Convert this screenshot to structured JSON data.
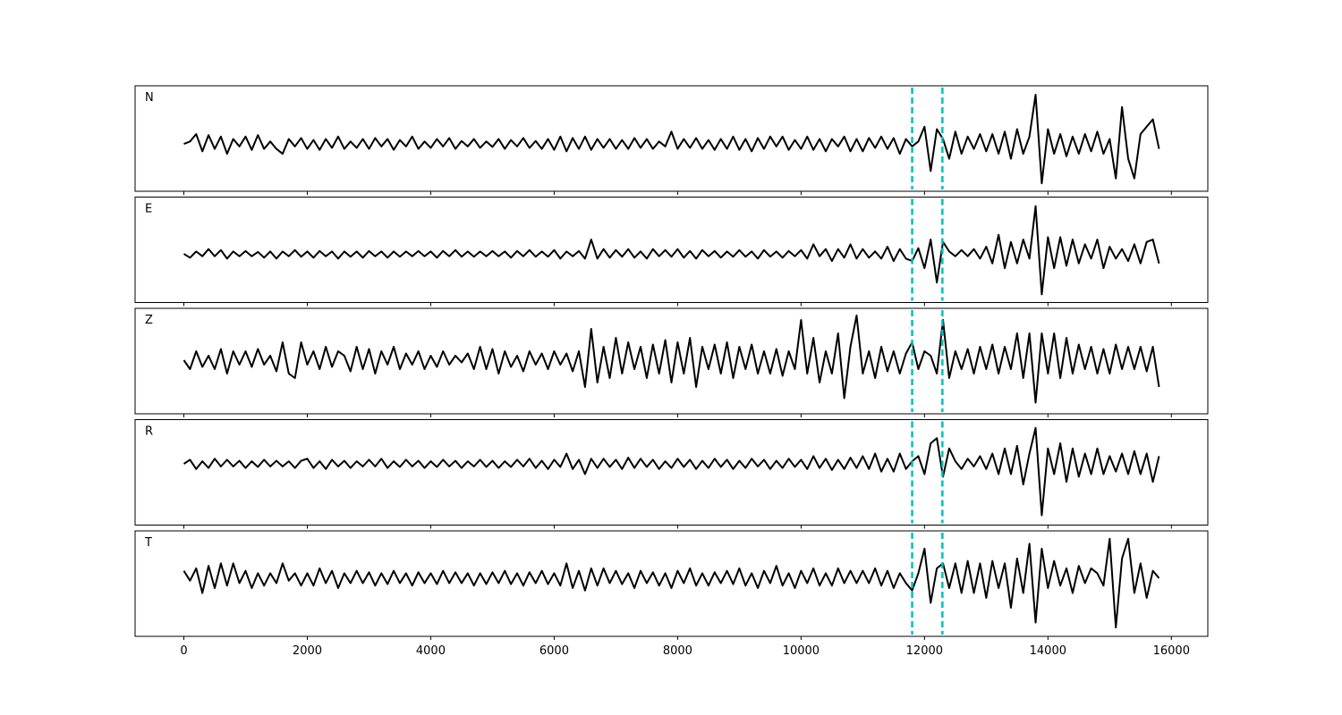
{
  "chart_data": {
    "type": "line",
    "x": [
      0,
      100,
      200,
      300,
      400,
      500,
      600,
      700,
      800,
      900,
      1000,
      1100,
      1200,
      1300,
      1400,
      1500,
      1600,
      1700,
      1800,
      1900,
      2000,
      2100,
      2200,
      2300,
      2400,
      2500,
      2600,
      2700,
      2800,
      2900,
      3000,
      3100,
      3200,
      3300,
      3400,
      3500,
      3600,
      3700,
      3800,
      3900,
      4000,
      4100,
      4200,
      4300,
      4400,
      4500,
      4600,
      4700,
      4800,
      4900,
      5000,
      5100,
      5200,
      5300,
      5400,
      5500,
      5600,
      5700,
      5800,
      5900,
      6000,
      6100,
      6200,
      6300,
      6400,
      6500,
      6600,
      6700,
      6800,
      6900,
      7000,
      7100,
      7200,
      7300,
      7400,
      7500,
      7600,
      7700,
      7800,
      7900,
      8000,
      8100,
      8200,
      8300,
      8400,
      8500,
      8600,
      8700,
      8800,
      8900,
      9000,
      9100,
      9200,
      9300,
      9400,
      9500,
      9600,
      9700,
      9800,
      9900,
      10000,
      10100,
      10200,
      10300,
      10400,
      10500,
      10600,
      10700,
      10800,
      10900,
      11000,
      11100,
      11200,
      11300,
      11400,
      11500,
      11600,
      11700,
      11800,
      11900,
      12000,
      12100,
      12200,
      12300,
      12400,
      12500,
      12600,
      12700,
      12800,
      12900,
      13000,
      13100,
      13200,
      13300,
      13400,
      13500,
      13600,
      13700,
      13800,
      13900,
      14000,
      14100,
      14200,
      14300,
      14400,
      14500,
      14600,
      14700,
      14800,
      14900,
      15000,
      15100,
      15200,
      15300,
      15400,
      15500,
      15600,
      15700,
      15800
    ],
    "xlim": [
      -790,
      16590
    ],
    "xticks": [
      0,
      2000,
      4000,
      6000,
      8000,
      10000,
      12000,
      14000,
      16000
    ],
    "vlines": [
      11800,
      12290
    ],
    "vline_color": "#00bfbf",
    "series": [
      {
        "name": "N",
        "color": "#000000",
        "ylim": [
          -0.96,
          1.18
        ],
        "values": [
          0.0,
          0.05,
          0.2,
          -0.15,
          0.18,
          -0.1,
          0.15,
          -0.2,
          0.1,
          -0.05,
          0.15,
          -0.12,
          0.18,
          -0.1,
          0.05,
          -0.1,
          -0.2,
          0.1,
          -0.05,
          0.12,
          -0.1,
          0.08,
          -0.12,
          0.1,
          -0.08,
          0.15,
          -0.1,
          0.05,
          -0.08,
          0.1,
          -0.1,
          0.12,
          -0.05,
          0.1,
          -0.12,
          0.08,
          -0.05,
          0.15,
          -0.1,
          0.05,
          -0.08,
          0.1,
          -0.05,
          0.12,
          -0.1,
          0.06,
          -0.05,
          0.1,
          -0.08,
          0.05,
          -0.06,
          0.1,
          -0.1,
          0.08,
          -0.05,
          0.12,
          -0.08,
          0.06,
          -0.1,
          0.1,
          -0.12,
          0.15,
          -0.15,
          0.12,
          -0.1,
          0.15,
          -0.12,
          0.1,
          -0.08,
          0.1,
          -0.1,
          0.08,
          -0.1,
          0.12,
          -0.08,
          0.1,
          -0.1,
          0.05,
          -0.05,
          0.25,
          -0.1,
          0.1,
          -0.08,
          0.12,
          -0.1,
          0.08,
          -0.12,
          0.1,
          -0.1,
          0.15,
          -0.12,
          0.1,
          -0.15,
          0.12,
          -0.1,
          0.15,
          -0.05,
          0.15,
          -0.12,
          0.08,
          -0.1,
          0.15,
          -0.12,
          0.1,
          -0.15,
          0.1,
          -0.05,
          0.15,
          -0.15,
          0.1,
          -0.15,
          0.12,
          -0.08,
          0.15,
          -0.1,
          0.12,
          -0.2,
          0.1,
          -0.05,
          0.05,
          0.35,
          -0.55,
          0.3,
          0.1,
          -0.3,
          0.25,
          -0.2,
          0.15,
          -0.1,
          0.2,
          -0.15,
          0.2,
          -0.2,
          0.25,
          -0.3,
          0.3,
          -0.2,
          0.15,
          1.0,
          -0.8,
          0.3,
          -0.2,
          0.2,
          -0.25,
          0.15,
          -0.2,
          0.2,
          -0.15,
          0.25,
          -0.2,
          0.1,
          -0.7,
          0.75,
          -0.3,
          -0.7,
          0.2,
          0.35,
          0.5,
          -0.1
        ]
      },
      {
        "name": "E",
        "color": "#000000",
        "ylim": [
          -1.02,
          1.19
        ],
        "values": [
          0.0,
          -0.08,
          0.05,
          -0.05,
          0.1,
          -0.05,
          0.08,
          -0.1,
          0.05,
          -0.05,
          0.06,
          -0.05,
          0.04,
          -0.08,
          0.05,
          -0.1,
          0.05,
          -0.05,
          0.08,
          -0.06,
          0.05,
          -0.08,
          0.06,
          -0.05,
          0.05,
          -0.1,
          0.05,
          -0.06,
          0.05,
          -0.08,
          0.06,
          -0.05,
          0.05,
          -0.08,
          0.05,
          -0.06,
          0.05,
          -0.05,
          0.06,
          -0.05,
          0.05,
          -0.08,
          0.06,
          -0.05,
          0.08,
          -0.06,
          0.05,
          -0.06,
          0.05,
          -0.05,
          0.06,
          -0.05,
          0.05,
          -0.08,
          0.06,
          -0.05,
          0.08,
          -0.06,
          0.05,
          -0.06,
          0.08,
          -0.1,
          0.05,
          -0.05,
          0.06,
          -0.1,
          0.3,
          -0.1,
          0.1,
          -0.08,
          0.08,
          -0.06,
          0.1,
          -0.08,
          0.05,
          -0.1,
          0.1,
          -0.05,
          0.08,
          -0.06,
          0.1,
          -0.08,
          0.06,
          -0.1,
          0.08,
          -0.05,
          0.06,
          -0.08,
          0.05,
          -0.06,
          0.08,
          -0.06,
          0.05,
          -0.1,
          0.08,
          -0.06,
          0.05,
          -0.08,
          0.06,
          -0.05,
          0.08,
          -0.1,
          0.2,
          -0.05,
          0.1,
          -0.15,
          0.1,
          -0.08,
          0.2,
          -0.1,
          0.1,
          -0.08,
          0.05,
          -0.1,
          0.15,
          -0.15,
          0.1,
          -0.1,
          -0.15,
          0.12,
          -0.3,
          0.3,
          -0.6,
          0.25,
          0.05,
          -0.05,
          0.08,
          -0.05,
          0.1,
          -0.1,
          0.15,
          -0.2,
          0.4,
          -0.3,
          0.25,
          -0.2,
          0.3,
          -0.1,
          1.0,
          -0.85,
          0.35,
          -0.3,
          0.35,
          -0.25,
          0.3,
          -0.2,
          0.2,
          -0.1,
          0.3,
          -0.3,
          0.15,
          -0.1,
          0.1,
          -0.15,
          0.2,
          -0.2,
          0.25,
          0.3,
          -0.2
        ]
      },
      {
        "name": "Z",
        "color": "#000000",
        "ylim": [
          -1.2,
          1.16
        ],
        "values": [
          0.0,
          -0.2,
          0.2,
          -0.15,
          0.1,
          -0.2,
          0.25,
          -0.3,
          0.2,
          -0.1,
          0.2,
          -0.15,
          0.25,
          -0.1,
          0.1,
          -0.25,
          0.4,
          -0.3,
          -0.4,
          0.4,
          -0.1,
          0.2,
          -0.2,
          0.3,
          -0.15,
          0.2,
          0.1,
          -0.25,
          0.3,
          -0.2,
          0.25,
          -0.3,
          0.2,
          -0.1,
          0.3,
          -0.2,
          0.15,
          -0.1,
          0.2,
          -0.2,
          0.1,
          -0.15,
          0.2,
          -0.1,
          0.1,
          -0.05,
          0.15,
          -0.2,
          0.3,
          -0.2,
          0.25,
          -0.3,
          0.2,
          -0.15,
          0.1,
          -0.25,
          0.2,
          -0.1,
          0.15,
          -0.2,
          0.2,
          -0.1,
          0.15,
          -0.25,
          0.2,
          -0.6,
          0.7,
          -0.5,
          0.3,
          -0.4,
          0.5,
          -0.3,
          0.4,
          -0.2,
          0.3,
          -0.4,
          0.35,
          -0.3,
          0.45,
          -0.5,
          0.4,
          -0.3,
          0.5,
          -0.6,
          0.3,
          -0.2,
          0.35,
          -0.3,
          0.4,
          -0.4,
          0.3,
          -0.2,
          0.35,
          -0.3,
          0.2,
          -0.3,
          0.25,
          -0.35,
          0.2,
          -0.2,
          0.9,
          -0.3,
          0.5,
          -0.5,
          0.2,
          -0.3,
          0.6,
          -0.85,
          0.3,
          1.0,
          -0.3,
          0.2,
          -0.4,
          0.3,
          -0.25,
          0.2,
          -0.3,
          0.15,
          0.4,
          -0.2,
          0.2,
          0.1,
          -0.3,
          0.9,
          -0.4,
          0.2,
          -0.2,
          0.25,
          -0.3,
          0.3,
          -0.2,
          0.35,
          -0.3,
          0.3,
          -0.2,
          0.6,
          -0.4,
          0.6,
          -0.95,
          0.6,
          -0.3,
          0.6,
          -0.4,
          0.5,
          -0.3,
          0.35,
          -0.2,
          0.3,
          -0.3,
          0.25,
          -0.3,
          0.35,
          -0.2,
          0.3,
          -0.2,
          0.3,
          -0.25,
          0.3,
          -0.6
        ]
      },
      {
        "name": "R",
        "color": "#000000",
        "ylim": [
          -1.19,
          0.86
        ],
        "values": [
          0.0,
          0.08,
          -0.1,
          0.05,
          -0.08,
          0.1,
          -0.05,
          0.08,
          -0.05,
          0.06,
          -0.08,
          0.05,
          -0.06,
          0.08,
          -0.05,
          0.06,
          -0.05,
          0.05,
          -0.08,
          0.06,
          0.1,
          -0.08,
          0.05,
          -0.1,
          0.08,
          -0.05,
          0.06,
          -0.08,
          0.05,
          -0.05,
          0.08,
          -0.05,
          0.1,
          -0.08,
          0.05,
          -0.06,
          0.08,
          -0.05,
          0.06,
          -0.08,
          0.05,
          -0.06,
          0.08,
          -0.05,
          0.06,
          -0.08,
          0.05,
          -0.05,
          0.08,
          -0.06,
          0.06,
          -0.08,
          0.05,
          -0.06,
          0.08,
          -0.05,
          0.1,
          -0.08,
          0.06,
          -0.1,
          0.08,
          -0.06,
          0.2,
          -0.1,
          0.08,
          -0.2,
          0.1,
          -0.08,
          0.1,
          -0.06,
          0.08,
          -0.1,
          0.12,
          -0.08,
          0.1,
          -0.06,
          0.08,
          -0.1,
          0.05,
          -0.08,
          0.1,
          -0.06,
          0.08,
          -0.1,
          0.06,
          -0.08,
          0.1,
          -0.06,
          0.08,
          -0.1,
          0.06,
          -0.08,
          0.1,
          -0.05,
          0.08,
          -0.1,
          0.06,
          -0.08,
          0.1,
          -0.06,
          0.08,
          -0.1,
          0.15,
          -0.08,
          0.1,
          -0.12,
          0.08,
          -0.1,
          0.12,
          -0.08,
          0.15,
          -0.1,
          0.2,
          -0.15,
          0.1,
          -0.15,
          0.2,
          -0.1,
          0.05,
          0.15,
          -0.2,
          0.4,
          0.5,
          -0.25,
          0.3,
          0.05,
          -0.1,
          0.1,
          -0.05,
          0.15,
          -0.1,
          0.2,
          -0.2,
          0.3,
          -0.2,
          0.35,
          -0.4,
          0.2,
          0.7,
          -1.0,
          0.3,
          -0.2,
          0.4,
          -0.35,
          0.3,
          -0.25,
          0.2,
          -0.2,
          0.3,
          -0.2,
          0.15,
          -0.15,
          0.2,
          -0.2,
          0.25,
          -0.2,
          0.2,
          -0.35,
          0.15
        ]
      },
      {
        "name": "T",
        "color": "#000000",
        "ylim": [
          -1.18,
          0.96
        ],
        "values": [
          0.15,
          -0.05,
          0.2,
          -0.3,
          0.25,
          -0.2,
          0.3,
          -0.15,
          0.3,
          -0.1,
          0.15,
          -0.2,
          0.1,
          -0.15,
          0.1,
          -0.1,
          0.3,
          -0.05,
          0.1,
          -0.15,
          0.1,
          -0.15,
          0.2,
          -0.1,
          0.15,
          -0.2,
          0.1,
          -0.1,
          0.15,
          -0.1,
          0.12,
          -0.15,
          0.1,
          -0.12,
          0.15,
          -0.1,
          0.1,
          -0.15,
          0.12,
          -0.1,
          0.1,
          -0.12,
          0.15,
          -0.1,
          0.12,
          -0.1,
          0.1,
          -0.15,
          0.1,
          -0.12,
          0.12,
          -0.1,
          0.15,
          -0.12,
          0.1,
          -0.15,
          0.12,
          -0.1,
          0.15,
          -0.12,
          0.1,
          -0.15,
          0.3,
          -0.2,
          0.15,
          -0.25,
          0.2,
          -0.15,
          0.2,
          -0.1,
          0.15,
          -0.12,
          0.1,
          -0.2,
          0.15,
          -0.1,
          0.12,
          -0.15,
          0.1,
          -0.2,
          0.15,
          -0.1,
          0.2,
          -0.15,
          0.1,
          -0.15,
          0.12,
          -0.1,
          0.15,
          -0.12,
          0.2,
          -0.15,
          0.1,
          -0.2,
          0.15,
          -0.1,
          0.25,
          -0.15,
          0.1,
          -0.2,
          0.15,
          -0.1,
          0.2,
          -0.15,
          0.1,
          -0.15,
          0.2,
          -0.1,
          0.15,
          -0.1,
          0.15,
          -0.1,
          0.2,
          -0.15,
          0.15,
          -0.2,
          0.1,
          -0.1,
          -0.25,
          0.1,
          0.6,
          -0.5,
          0.2,
          0.3,
          -0.2,
          0.3,
          -0.3,
          0.35,
          -0.3,
          0.3,
          -0.4,
          0.35,
          -0.2,
          0.3,
          -0.6,
          0.4,
          -0.3,
          0.7,
          -0.9,
          0.6,
          -0.2,
          0.35,
          -0.15,
          0.2,
          -0.3,
          0.25,
          -0.1,
          0.2,
          0.1,
          -0.15,
          0.8,
          -1.0,
          0.4,
          0.8,
          -0.3,
          0.3,
          -0.4,
          0.15,
          0.0
        ]
      }
    ]
  }
}
